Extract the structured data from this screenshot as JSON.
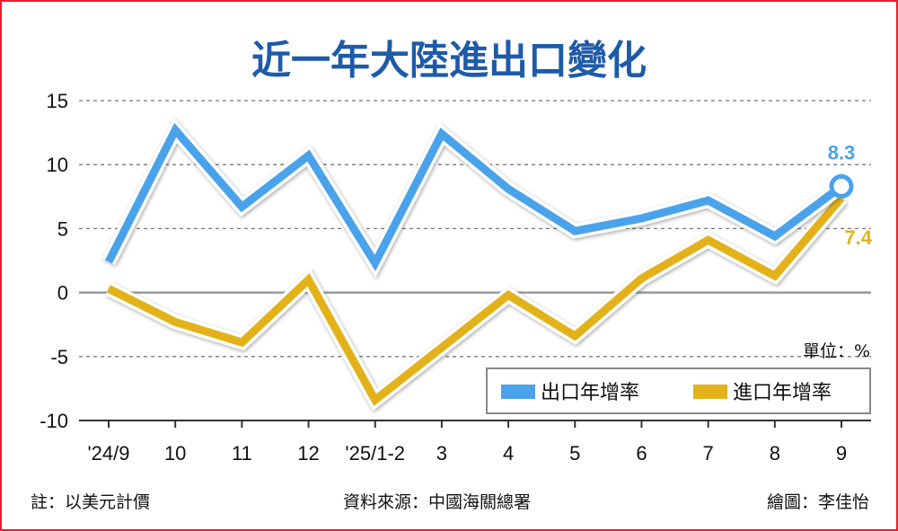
{
  "chart_data": {
    "type": "line",
    "title": "近一年大陸進出口變化",
    "categories": [
      "'24/9",
      "10",
      "11",
      "12",
      "'25/1-2",
      "3",
      "4",
      "5",
      "6",
      "7",
      "8",
      "9"
    ],
    "series": [
      {
        "name": "出口年增率",
        "color": "#4aa3ea",
        "values": [
          2.4,
          12.7,
          6.7,
          10.7,
          2.3,
          12.4,
          8.1,
          4.8,
          5.8,
          7.2,
          4.4,
          8.3
        ]
      },
      {
        "name": "進口年增率",
        "color": "#e3b21b",
        "values": [
          0.3,
          -2.3,
          -3.9,
          1.0,
          -8.4,
          -4.3,
          -0.2,
          -3.4,
          1.1,
          4.1,
          1.3,
          7.4
        ]
      }
    ],
    "ylim": [
      -10,
      15
    ],
    "yticks": [
      15,
      10,
      5,
      0,
      -5,
      -10
    ],
    "grid": true,
    "unit": "單位：%",
    "data_labels": [
      {
        "series": "出口年增率",
        "category": "9",
        "text": "8.3"
      },
      {
        "series": "進口年增率",
        "category": "9",
        "text": "7.4"
      }
    ],
    "legend_position": "bottom-right"
  },
  "footer": {
    "note": "註：以美元計價",
    "source": "資料來源：中國海關總署",
    "credit": "繪圖：李佳怡"
  },
  "colors": {
    "frame": "#e6202e",
    "title": "#1e5ba8"
  }
}
